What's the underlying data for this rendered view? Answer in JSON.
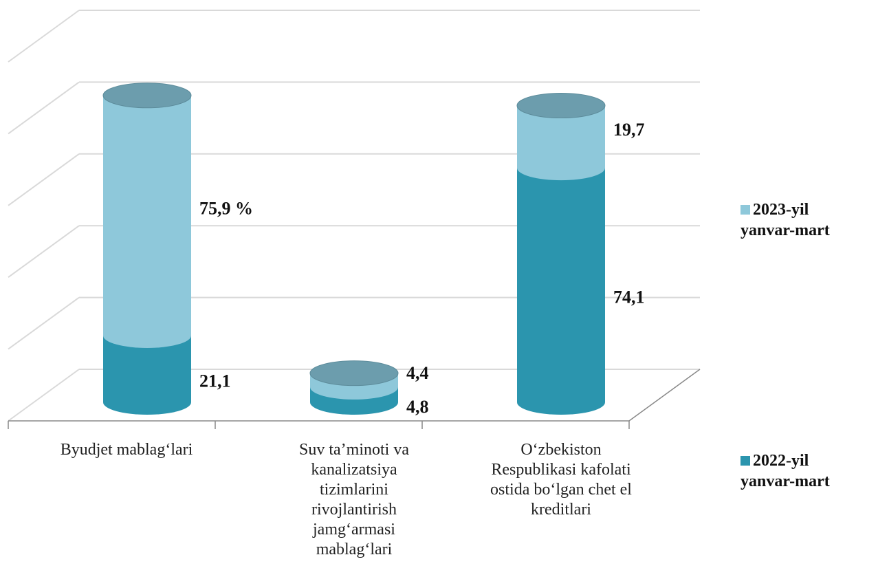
{
  "chart_data": {
    "type": "cylinder-stacked",
    "categories": [
      "Byudjet  mablag‘lari",
      "Suv ta’minoti va kanalizatsiya tizimlarini rivojlantirish jamg‘armasi mablag‘lari",
      "O‘zbekiston Respublikasi kafolati ostida bo‘lgan chet el kreditlari"
    ],
    "series": [
      {
        "name": "2022-yil yanvar-mart",
        "color": "#2b95ae",
        "values": [
          21.1,
          4.8,
          74.1
        ],
        "value_labels": [
          "21,1",
          "4,8",
          "74,1"
        ]
      },
      {
        "name": "2023-yil yanvar-mart",
        "color": "#8ec8da",
        "values": [
          75.9,
          4.4,
          19.7
        ],
        "value_labels": [
          "75,9 %",
          "4,4",
          "19,7"
        ]
      }
    ],
    "ylim": [
      0,
      100
    ],
    "grid": true,
    "legend": "right"
  }
}
